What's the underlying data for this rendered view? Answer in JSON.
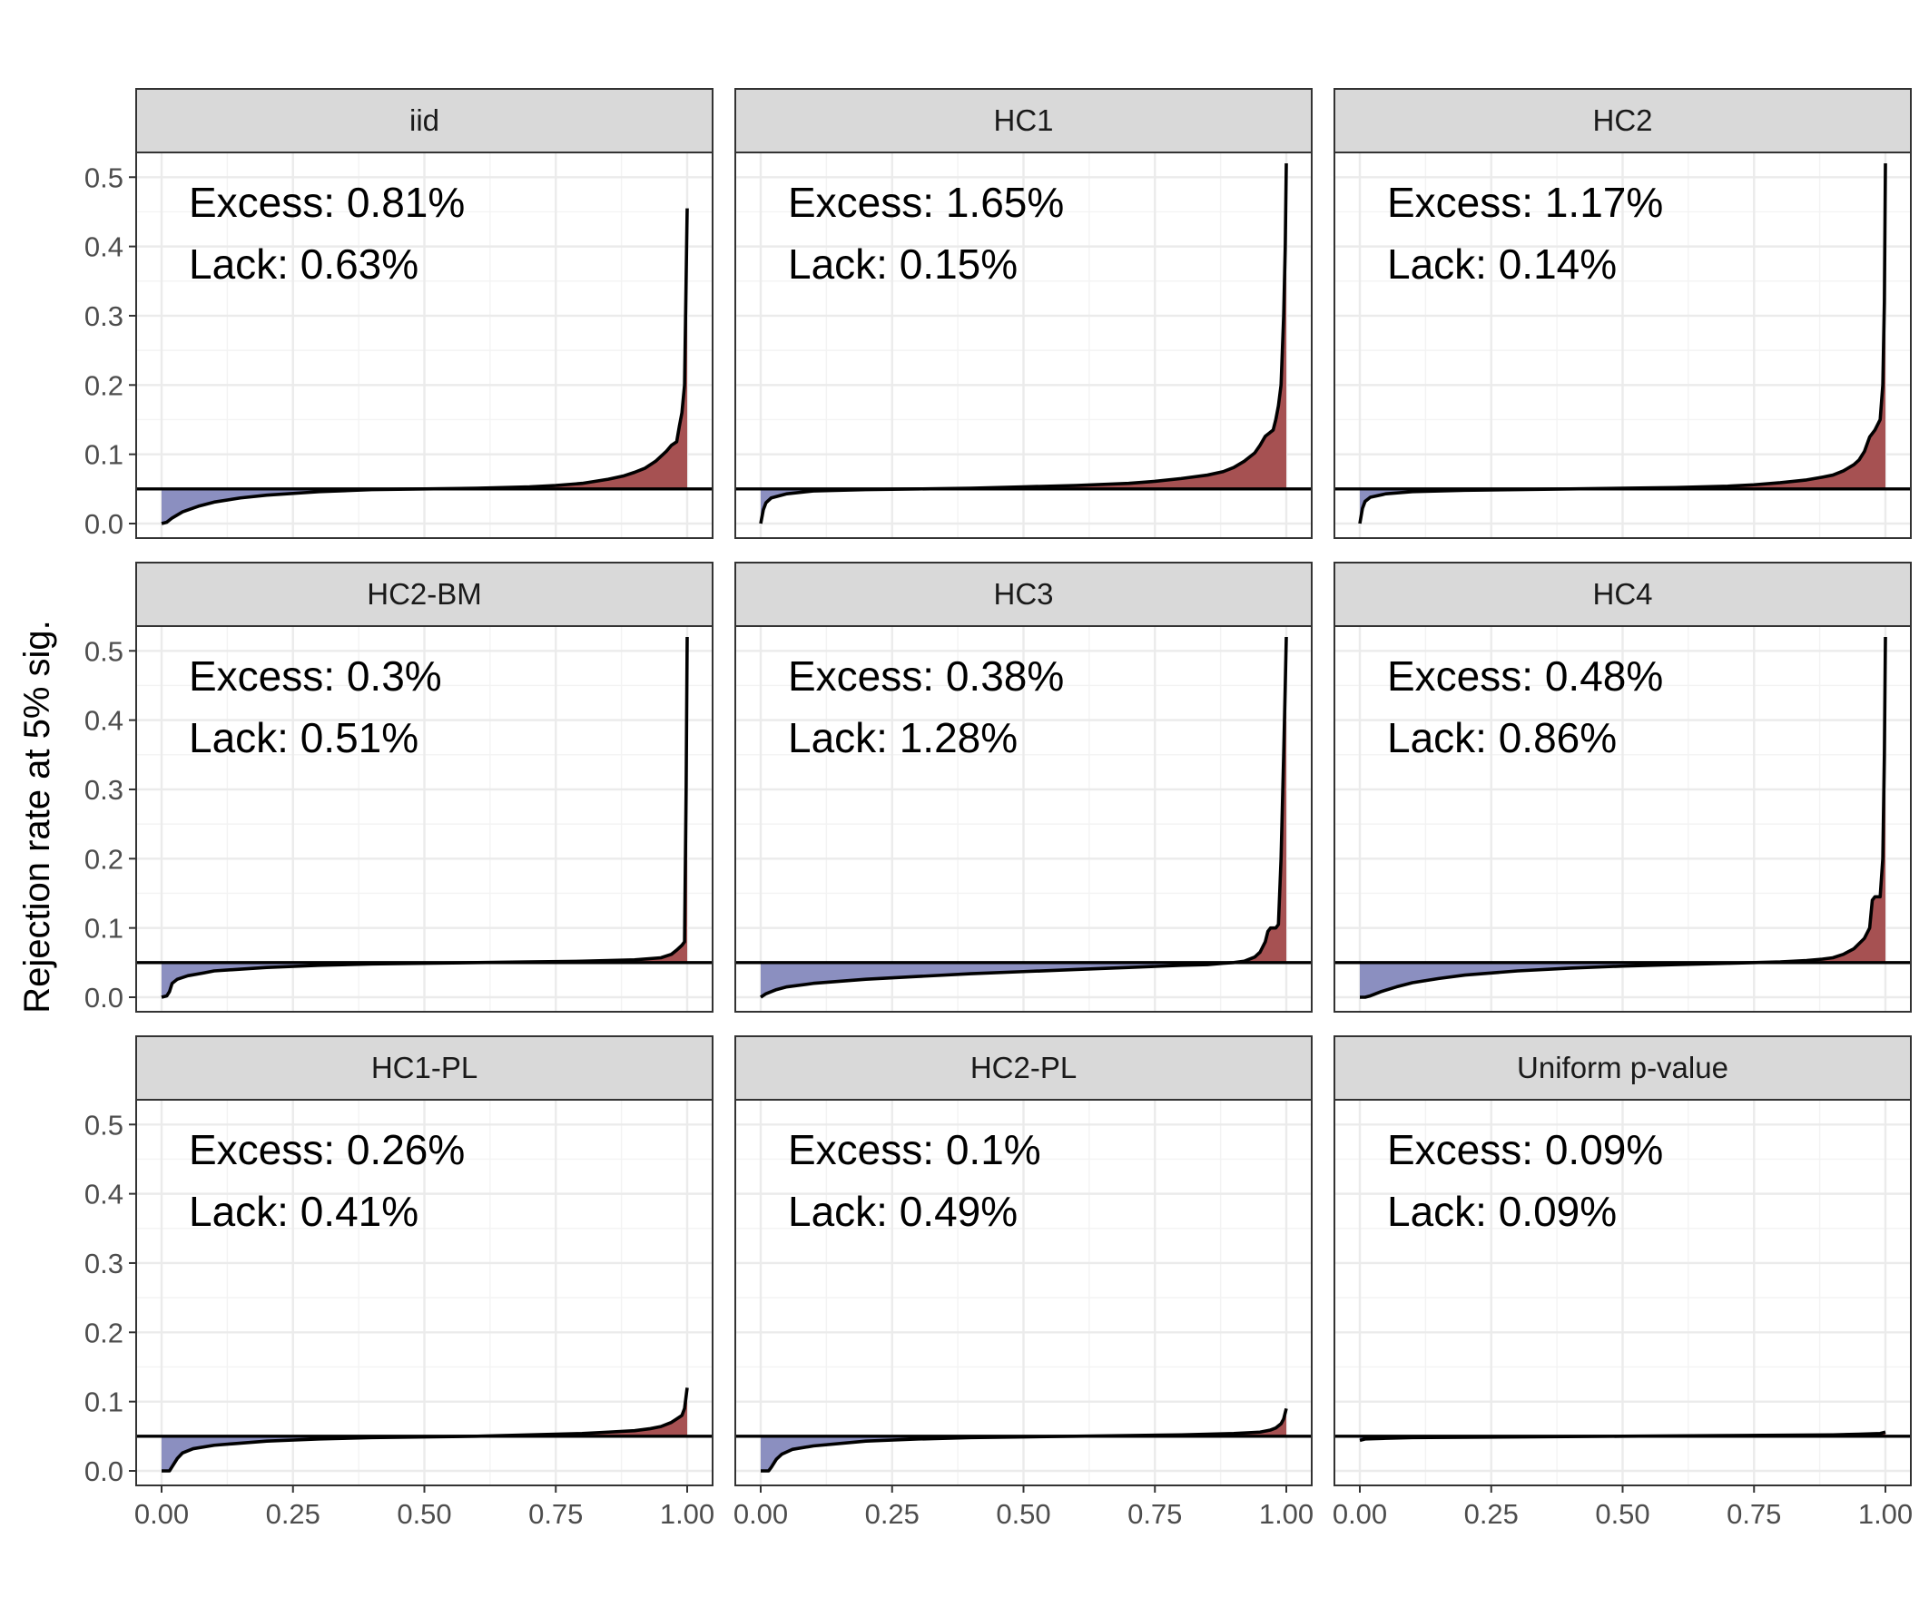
{
  "chart_data": {
    "type": "area",
    "ylabel": "Rejection rate at 5% sig.",
    "xlabel": "",
    "xlim": [
      0,
      1
    ],
    "ylim": [
      0,
      0.52
    ],
    "x_ticks": [
      "0.00",
      "0.25",
      "0.50",
      "0.75",
      "1.00"
    ],
    "y_ticks": [
      "0.0",
      "0.1",
      "0.2",
      "0.3",
      "0.4",
      "0.5"
    ],
    "reference_line": 0.05,
    "colors": {
      "below_reference": "#8b8fc0",
      "above_reference": "#a65152",
      "curve": "#000000",
      "strip": "#d9d9d9"
    },
    "panels": [
      {
        "label": "iid",
        "excess": "Excess: 0.81%",
        "lack": "Lack: 0.63%",
        "x": [
          0,
          0.01,
          0.02,
          0.04,
          0.07,
          0.1,
          0.15,
          0.2,
          0.3,
          0.4,
          0.5,
          0.6,
          0.7,
          0.75,
          0.8,
          0.85,
          0.88,
          0.9,
          0.92,
          0.94,
          0.96,
          0.97,
          0.98,
          0.985,
          0.99,
          0.995,
          1.0
        ],
        "y": [
          0,
          0.002,
          0.008,
          0.017,
          0.025,
          0.031,
          0.037,
          0.041,
          0.046,
          0.049,
          0.05,
          0.051,
          0.053,
          0.055,
          0.058,
          0.064,
          0.069,
          0.074,
          0.08,
          0.09,
          0.104,
          0.113,
          0.118,
          0.14,
          0.16,
          0.2,
          0.455
        ]
      },
      {
        "label": "HC1",
        "excess": "Excess: 1.65%",
        "lack": "Lack: 0.15%",
        "x": [
          0,
          0.005,
          0.01,
          0.02,
          0.05,
          0.1,
          0.2,
          0.3,
          0.4,
          0.5,
          0.6,
          0.7,
          0.75,
          0.8,
          0.85,
          0.88,
          0.9,
          0.92,
          0.94,
          0.95,
          0.96,
          0.97,
          0.975,
          0.98,
          0.985,
          0.99,
          0.995,
          0.998,
          1.0
        ],
        "y": [
          0,
          0.02,
          0.03,
          0.037,
          0.043,
          0.047,
          0.049,
          0.05,
          0.051,
          0.053,
          0.055,
          0.058,
          0.061,
          0.065,
          0.07,
          0.075,
          0.081,
          0.09,
          0.102,
          0.113,
          0.126,
          0.132,
          0.135,
          0.15,
          0.17,
          0.2,
          0.3,
          0.4,
          0.52
        ]
      },
      {
        "label": "HC2",
        "excess": "Excess: 1.17%",
        "lack": "Lack: 0.14%",
        "x": [
          0,
          0.005,
          0.01,
          0.02,
          0.05,
          0.1,
          0.2,
          0.3,
          0.4,
          0.5,
          0.6,
          0.7,
          0.75,
          0.8,
          0.85,
          0.88,
          0.9,
          0.92,
          0.94,
          0.95,
          0.96,
          0.97,
          0.98,
          0.99,
          0.995,
          0.998,
          1.0
        ],
        "y": [
          0,
          0.022,
          0.032,
          0.038,
          0.043,
          0.046,
          0.048,
          0.049,
          0.05,
          0.051,
          0.052,
          0.054,
          0.056,
          0.059,
          0.063,
          0.067,
          0.07,
          0.076,
          0.085,
          0.092,
          0.104,
          0.125,
          0.135,
          0.15,
          0.2,
          0.32,
          0.52
        ]
      },
      {
        "label": "HC2-BM",
        "excess": "Excess: 0.3%",
        "lack": "Lack: 0.51%",
        "x": [
          0,
          0.01,
          0.015,
          0.02,
          0.03,
          0.05,
          0.08,
          0.1,
          0.2,
          0.3,
          0.4,
          0.5,
          0.6,
          0.7,
          0.8,
          0.9,
          0.95,
          0.97,
          0.98,
          0.99,
          0.995,
          0.998,
          1.0
        ],
        "y": [
          0,
          0.002,
          0.008,
          0.02,
          0.026,
          0.031,
          0.035,
          0.038,
          0.043,
          0.046,
          0.048,
          0.049,
          0.05,
          0.051,
          0.052,
          0.054,
          0.057,
          0.062,
          0.068,
          0.075,
          0.08,
          0.3,
          0.52
        ]
      },
      {
        "label": "HC3",
        "excess": "Excess: 0.38%",
        "lack": "Lack: 1.28%",
        "x": [
          0,
          0.01,
          0.03,
          0.05,
          0.1,
          0.2,
          0.3,
          0.4,
          0.5,
          0.6,
          0.7,
          0.8,
          0.85,
          0.88,
          0.9,
          0.92,
          0.94,
          0.95,
          0.96,
          0.965,
          0.97,
          0.98,
          0.985,
          0.99,
          0.995,
          0.998,
          1.0
        ],
        "y": [
          0,
          0.005,
          0.011,
          0.015,
          0.02,
          0.026,
          0.03,
          0.034,
          0.037,
          0.04,
          0.043,
          0.046,
          0.047,
          0.049,
          0.05,
          0.052,
          0.058,
          0.065,
          0.08,
          0.095,
          0.1,
          0.1,
          0.105,
          0.2,
          0.35,
          0.45,
          0.52
        ]
      },
      {
        "label": "HC4",
        "excess": "Excess: 0.48%",
        "lack": "Lack: 0.86%",
        "x": [
          0,
          0.01,
          0.02,
          0.04,
          0.07,
          0.1,
          0.15,
          0.2,
          0.3,
          0.4,
          0.5,
          0.6,
          0.7,
          0.8,
          0.85,
          0.88,
          0.9,
          0.92,
          0.94,
          0.96,
          0.97,
          0.975,
          0.98,
          0.99,
          0.995,
          0.998,
          1.0
        ],
        "y": [
          0,
          0.0,
          0.002,
          0.008,
          0.015,
          0.021,
          0.027,
          0.032,
          0.038,
          0.042,
          0.045,
          0.047,
          0.049,
          0.051,
          0.053,
          0.055,
          0.057,
          0.062,
          0.07,
          0.085,
          0.1,
          0.14,
          0.145,
          0.145,
          0.2,
          0.35,
          0.52
        ]
      },
      {
        "label": "HC1-PL",
        "excess": "Excess: 0.26%",
        "lack": "Lack: 0.41%",
        "x": [
          0,
          0.015,
          0.02,
          0.03,
          0.04,
          0.06,
          0.1,
          0.2,
          0.3,
          0.4,
          0.5,
          0.6,
          0.7,
          0.8,
          0.85,
          0.9,
          0.93,
          0.95,
          0.97,
          0.98,
          0.99,
          0.995,
          1.0
        ],
        "y": [
          0,
          0.0,
          0.006,
          0.018,
          0.026,
          0.032,
          0.037,
          0.043,
          0.046,
          0.048,
          0.049,
          0.05,
          0.052,
          0.054,
          0.056,
          0.058,
          0.061,
          0.064,
          0.07,
          0.075,
          0.08,
          0.09,
          0.12
        ]
      },
      {
        "label": "HC2-PL",
        "excess": "Excess: 0.1%",
        "lack": "Lack: 0.49%",
        "x": [
          0,
          0.015,
          0.02,
          0.03,
          0.04,
          0.06,
          0.1,
          0.2,
          0.3,
          0.4,
          0.5,
          0.6,
          0.7,
          0.8,
          0.9,
          0.95,
          0.97,
          0.98,
          0.99,
          0.995,
          1.0
        ],
        "y": [
          0,
          0.0,
          0.005,
          0.017,
          0.024,
          0.031,
          0.036,
          0.043,
          0.046,
          0.048,
          0.049,
          0.05,
          0.051,
          0.052,
          0.054,
          0.056,
          0.059,
          0.062,
          0.068,
          0.075,
          0.09
        ]
      },
      {
        "label": "Uniform p-value",
        "excess": "Excess: 0.09%",
        "lack": "Lack: 0.09%",
        "x": [
          0,
          0.01,
          0.05,
          0.1,
          0.3,
          0.5,
          0.7,
          0.9,
          0.95,
          0.99,
          1.0
        ],
        "y": [
          0.044,
          0.046,
          0.047,
          0.048,
          0.049,
          0.05,
          0.051,
          0.052,
          0.053,
          0.054,
          0.056
        ]
      }
    ]
  }
}
